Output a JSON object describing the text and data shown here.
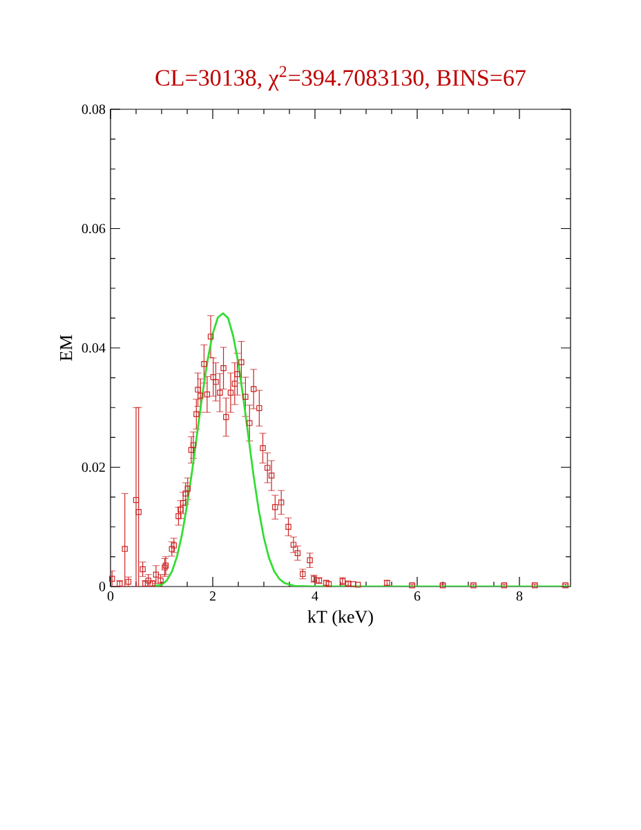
{
  "chart_data": {
    "type": "scatter",
    "title": "CL=30138, χ$^{2}$=394.7083130, BINS=67",
    "xlabel": "kT (keV)",
    "ylabel": "EM",
    "xlim": [
      0,
      9
    ],
    "ylim": [
      0,
      0.08
    ],
    "xticks": [
      0,
      2,
      4,
      6,
      8
    ],
    "yticks": [
      0,
      0.02,
      0.04,
      0.06,
      0.08
    ],
    "grid": false,
    "series": [
      {
        "color": "#cc2222",
        "marker": "square",
        "x": [
          0.03,
          0.18,
          0.28,
          0.35,
          0.5,
          0.55,
          0.63,
          0.68,
          0.74,
          0.82,
          0.89,
          0.98,
          1.06,
          1.08,
          1.2,
          1.24,
          1.33,
          1.37,
          1.42,
          1.47,
          1.51,
          1.58,
          1.62,
          1.68,
          1.71,
          1.76,
          1.83,
          1.89,
          1.96,
          2.01,
          2.06,
          2.14,
          2.21,
          2.26,
          2.35,
          2.43,
          2.48,
          2.56,
          2.64,
          2.72,
          2.8,
          2.91,
          2.98,
          3.07,
          3.15,
          3.22,
          3.34,
          3.48,
          3.58,
          3.66,
          3.76,
          3.9,
          3.98,
          4.08,
          4.22,
          4.27,
          4.54,
          4.65,
          4.75,
          4.84,
          5.41,
          5.9,
          6.5,
          7.1,
          7.7,
          8.3,
          8.9
        ],
        "values": [
          0.0013,
          0.0005,
          0.0063,
          0.0008,
          0.0145,
          0.0125,
          0.0029,
          0.0005,
          0.001,
          0.0005,
          0.002,
          0.001,
          0.0032,
          0.0035,
          0.0063,
          0.0069,
          0.0118,
          0.0129,
          0.014,
          0.0156,
          0.0164,
          0.0229,
          0.0237,
          0.0289,
          0.033,
          0.032,
          0.0373,
          0.0322,
          0.0419,
          0.0351,
          0.0343,
          0.0325,
          0.0366,
          0.0284,
          0.0325,
          0.034,
          0.0356,
          0.0376,
          0.0318,
          0.0274,
          0.0331,
          0.0299,
          0.0232,
          0.0199,
          0.0186,
          0.0133,
          0.0141,
          0.01,
          0.007,
          0.0056,
          0.0021,
          0.0044,
          0.0013,
          0.001,
          0.0006,
          0.0004,
          0.0009,
          0.0005,
          0.0004,
          0.0003,
          0.0006,
          0.0002,
          0.0002,
          0.0002,
          0.0002,
          0.0002,
          0.0002
        ],
        "errors": [
          0.0013,
          0.0005,
          [
            0,
            0.0156
          ],
          0.0008,
          [
            0,
            0.03
          ],
          [
            0,
            0.03
          ],
          0.0012,
          0.0005,
          0.001,
          0.0005,
          0.0015,
          0.001,
          0.0015,
          0.0015,
          0.0012,
          0.0012,
          0.0015,
          0.0015,
          0.0018,
          0.0018,
          0.0018,
          0.0022,
          0.0022,
          0.0025,
          0.0028,
          0.0028,
          0.0032,
          0.003,
          0.0035,
          0.0032,
          0.0032,
          0.0032,
          0.0035,
          0.0032,
          0.0033,
          0.0035,
          0.0035,
          0.0035,
          0.0033,
          0.003,
          0.0033,
          0.003,
          0.0025,
          0.0025,
          0.0025,
          0.002,
          0.002,
          0.0015,
          0.0013,
          0.0012,
          0.0008,
          0.0012,
          0.0006,
          0.0005,
          0.0004,
          null,
          0.0006,
          0.0003,
          null,
          null,
          0.0004,
          0.0002,
          0.0002,
          0.0002,
          0.0002,
          0.0002,
          0.0002
        ]
      },
      {
        "type": "line",
        "color": "#33dd33",
        "marker": "none",
        "line_style": "solid",
        "x": [
          0.8,
          1.0,
          1.1,
          1.2,
          1.3,
          1.4,
          1.5,
          1.6,
          1.7,
          1.8,
          1.9,
          2.0,
          2.1,
          2.2,
          2.3,
          2.4,
          2.5,
          2.6,
          2.7,
          2.8,
          2.9,
          3.0,
          3.1,
          3.2,
          3.3,
          3.4,
          3.6,
          4.0,
          9.0
        ],
        "values": [
          0,
          0.0003,
          0.001,
          0.0025,
          0.005,
          0.0088,
          0.0138,
          0.0196,
          0.026,
          0.0323,
          0.038,
          0.0424,
          0.0451,
          0.0458,
          0.045,
          0.042,
          0.0375,
          0.0315,
          0.025,
          0.0185,
          0.0128,
          0.0082,
          0.0048,
          0.0026,
          0.0013,
          0.0006,
          0.0001,
          0,
          0
        ]
      }
    ]
  }
}
